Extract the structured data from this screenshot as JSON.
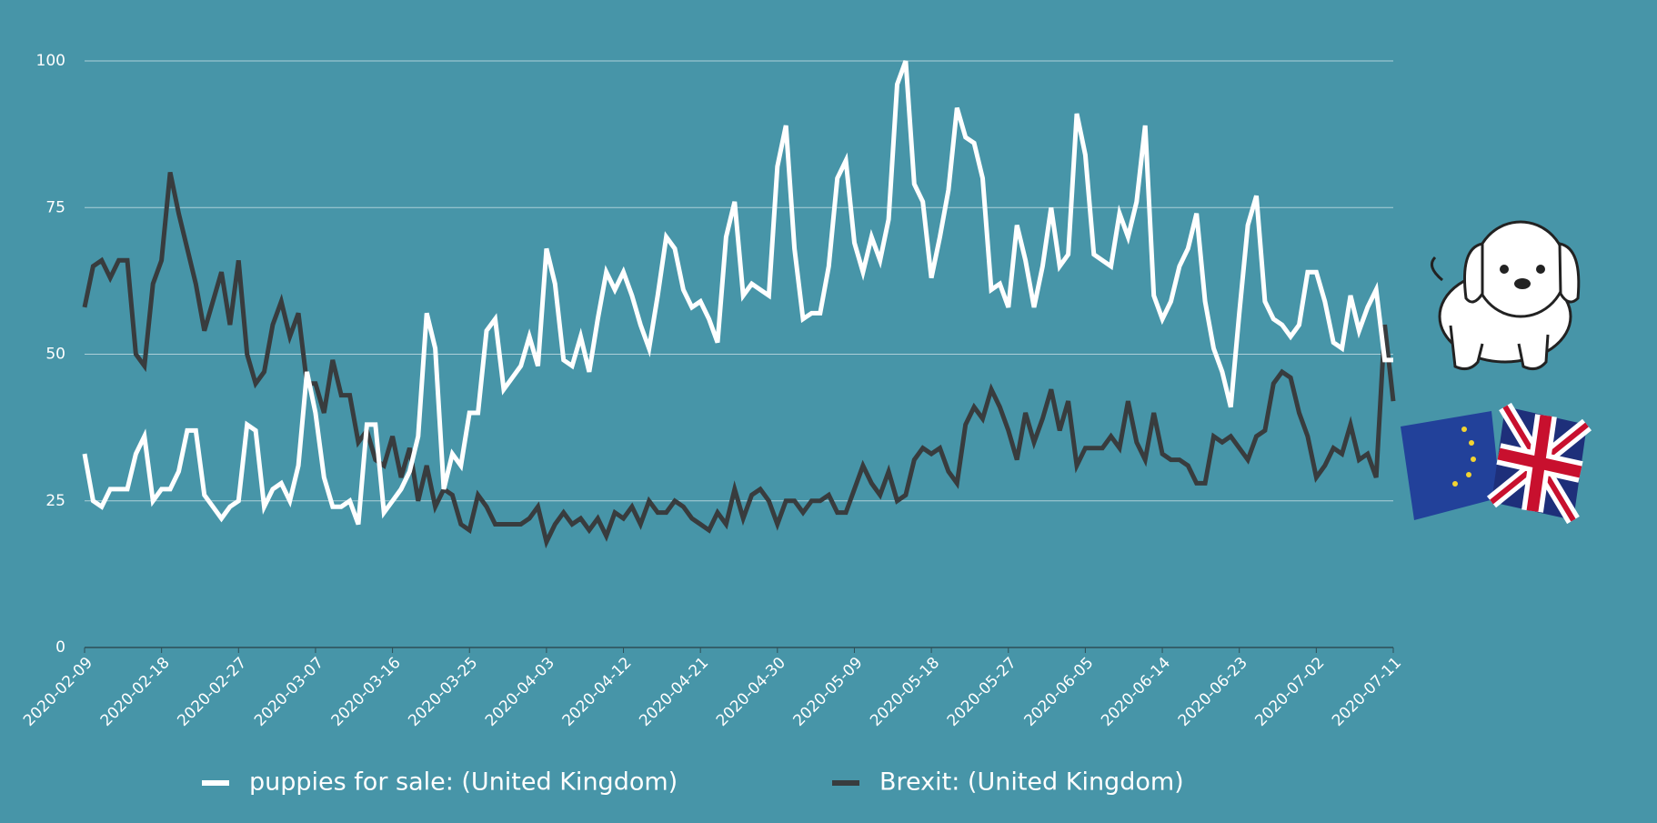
{
  "chart_data": {
    "type": "line",
    "categories": [
      "2020-02-09",
      null,
      null,
      null,
      null,
      null,
      null,
      null,
      null,
      "2020-02-18",
      null,
      null,
      null,
      null,
      null,
      null,
      null,
      null,
      "2020-02-27",
      null,
      null,
      null,
      null,
      null,
      null,
      null,
      null,
      "2020-03-07",
      null,
      null,
      null,
      null,
      null,
      null,
      null,
      null,
      "2020-03-16",
      null,
      null,
      null,
      null,
      null,
      null,
      null,
      null,
      "2020-03-25",
      null,
      null,
      null,
      null,
      null,
      null,
      null,
      null,
      "2020-04-03",
      null,
      null,
      null,
      null,
      null,
      null,
      null,
      null,
      "2020-04-12",
      null,
      null,
      null,
      null,
      null,
      null,
      null,
      null,
      "2020-04-21",
      null,
      null,
      null,
      null,
      null,
      null,
      null,
      null,
      "2020-04-30",
      null,
      null,
      null,
      null,
      null,
      null,
      null,
      null,
      "2020-05-09",
      null,
      null,
      null,
      null,
      null,
      null,
      null,
      null,
      "2020-05-18",
      null,
      null,
      null,
      null,
      null,
      null,
      null,
      null,
      "2020-05-27",
      null,
      null,
      null,
      null,
      null,
      null,
      null,
      null,
      "2020-06-05",
      null,
      null,
      null,
      null,
      null,
      null,
      null,
      null,
      "2020-06-14",
      null,
      null,
      null,
      null,
      null,
      null,
      null,
      null,
      "2020-06-23",
      null,
      null,
      null,
      null,
      null,
      null,
      null,
      null,
      "2020-07-02",
      null,
      null,
      null,
      null,
      null,
      null,
      null,
      null,
      "2020-07-11"
    ],
    "series": [
      {
        "name": "puppies for sale: (United Kingdom)",
        "color": "#ffffff",
        "values": [
          33,
          25,
          24,
          27,
          27,
          27,
          33,
          36,
          25,
          27,
          27,
          30,
          37,
          37,
          26,
          24,
          22,
          24,
          25,
          38,
          37,
          24,
          27,
          28,
          25,
          31,
          47,
          40,
          29,
          24,
          24,
          25,
          21,
          38,
          38,
          23,
          25,
          27,
          30,
          36,
          57,
          51,
          27,
          33,
          31,
          40,
          40,
          54,
          56,
          44,
          46,
          48,
          53,
          48,
          68,
          62,
          49,
          48,
          53,
          47,
          56,
          64,
          61,
          64,
          60,
          55,
          51,
          60,
          70,
          68,
          61,
          58,
          59,
          56,
          52,
          70,
          76,
          60,
          62,
          61,
          60,
          82,
          89,
          68,
          56,
          57,
          57,
          65,
          80,
          83,
          69,
          64,
          70,
          66,
          73,
          96,
          100,
          79,
          76,
          63,
          70,
          78,
          92,
          87,
          86,
          80,
          61,
          62,
          58,
          72,
          66,
          58,
          65,
          75,
          65,
          67,
          91,
          84,
          67,
          66,
          65,
          74,
          70,
          76,
          89,
          60,
          56,
          59,
          65,
          68,
          74,
          59,
          51,
          47,
          41,
          57,
          72,
          77,
          59,
          56,
          55,
          53,
          55,
          64,
          64,
          59,
          52,
          51,
          60,
          54,
          58,
          61,
          49,
          49
        ]
      },
      {
        "name": "Brexit: (United Kingdom)",
        "color": "#383c3e",
        "values": [
          58,
          65,
          66,
          63,
          66,
          66,
          50,
          48,
          62,
          66,
          81,
          74,
          68,
          62,
          54,
          59,
          64,
          55,
          66,
          50,
          45,
          47,
          55,
          59,
          53,
          57,
          45,
          45,
          40,
          49,
          43,
          43,
          35,
          37,
          32,
          31,
          36,
          29,
          34,
          25,
          31,
          24,
          27,
          26,
          21,
          20,
          26,
          24,
          21,
          21,
          21,
          21,
          22,
          24,
          18,
          21,
          23,
          21,
          22,
          20,
          22,
          19,
          23,
          22,
          24,
          21,
          25,
          23,
          23,
          25,
          24,
          22,
          21,
          20,
          23,
          21,
          27,
          22,
          26,
          27,
          25,
          21,
          25,
          25,
          23,
          25,
          25,
          26,
          23,
          23,
          27,
          31,
          28,
          26,
          30,
          25,
          26,
          32,
          34,
          33,
          34,
          30,
          28,
          38,
          41,
          39,
          44,
          41,
          37,
          32,
          40,
          35,
          39,
          44,
          37,
          42,
          31,
          34,
          34,
          34,
          36,
          34,
          42,
          35,
          32,
          40,
          33,
          32,
          32,
          31,
          28,
          28,
          36,
          35,
          36,
          34,
          32,
          36,
          37,
          45,
          47,
          46,
          40,
          36,
          29,
          31,
          34,
          33,
          38,
          32,
          33,
          29,
          55,
          42
        ]
      }
    ],
    "ylim": [
      0,
      100
    ],
    "yticks": [
      0,
      25,
      50,
      75,
      100
    ],
    "grid": true,
    "legend": "bottom"
  }
}
